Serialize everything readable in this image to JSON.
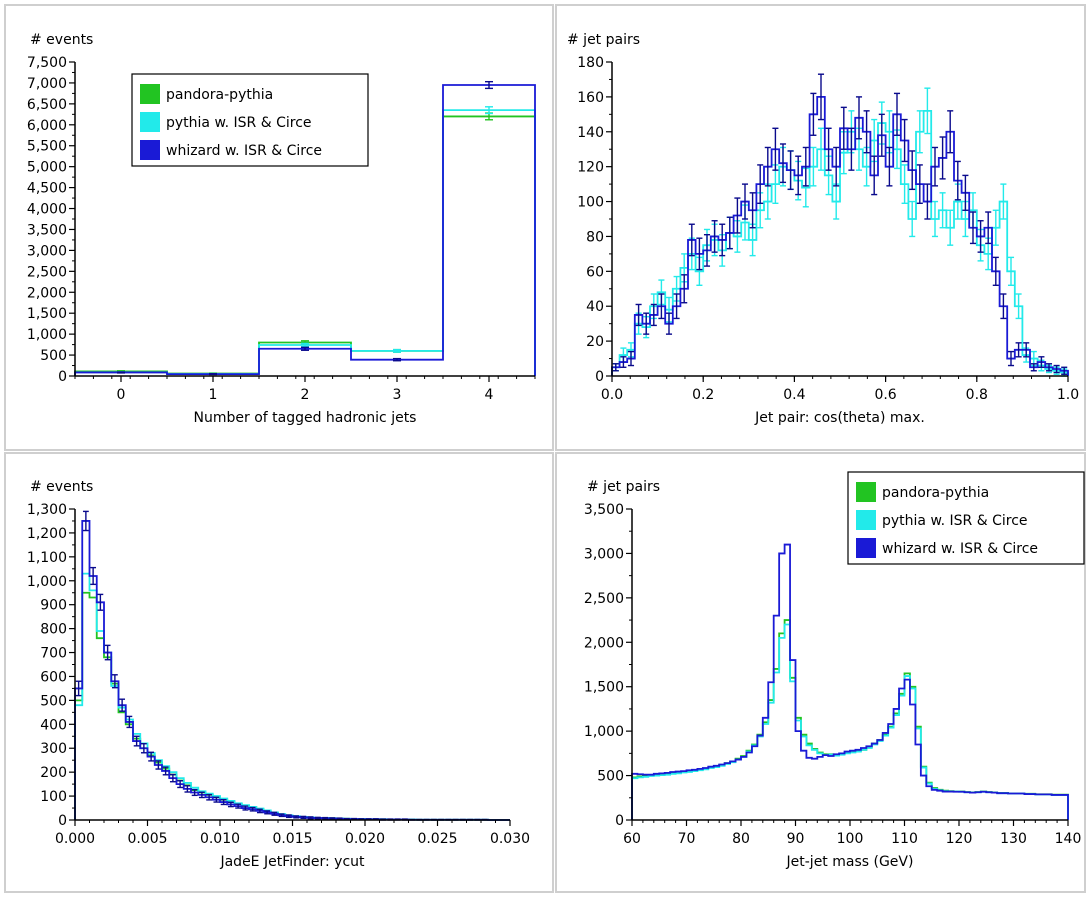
{
  "colors": {
    "pandora": "#22c422",
    "pythia": "#22eaea",
    "whizard": "#1a1ad6",
    "whizard_dark": "#0a0a8c",
    "panel_border": "#cfcfcf",
    "axis": "#000000"
  },
  "chart_data": [
    {
      "type": "histogram",
      "title": "",
      "ylabel": "# events",
      "xlabel": "Number of tagged hadronic jets",
      "xlim": [
        -0.5,
        4.5
      ],
      "ylim": [
        0,
        7500
      ],
      "xticks": [
        0,
        1,
        2,
        3,
        4
      ],
      "xtick_labels": [
        "0",
        "1",
        "2",
        "3",
        "4"
      ],
      "yticks": [
        0,
        500,
        1000,
        1500,
        2000,
        2500,
        3000,
        3500,
        4000,
        4500,
        5000,
        5500,
        6000,
        6500,
        7000,
        7500
      ],
      "ytick_labels": [
        "0",
        "500",
        "1,000",
        "1,500",
        "2,000",
        "2,500",
        "3,000",
        "3,500",
        "4,000",
        "4,500",
        "5,000",
        "5,500",
        "6,000",
        "6,500",
        "7,000",
        "7,500"
      ],
      "legend": {
        "placement": "top-left",
        "entries": [
          "pandora-pythia",
          "pythia w. ISR & Circe",
          "whizard w. ISR & Circe"
        ]
      },
      "bin_edges": [
        -0.5,
        0.5,
        1.5,
        2.5,
        3.5,
        4.5
      ],
      "series": [
        {
          "key": "pandora",
          "values": [
            110,
            60,
            800,
            600,
            6200
          ],
          "errors": [
            15,
            10,
            40,
            30,
            80
          ]
        },
        {
          "key": "pythia",
          "values": [
            90,
            50,
            740,
            600,
            6350
          ],
          "errors": [
            12,
            9,
            38,
            30,
            80
          ]
        },
        {
          "key": "whizard",
          "values": [
            85,
            45,
            650,
            390,
            6950
          ],
          "errors": [
            12,
            9,
            35,
            25,
            80
          ]
        }
      ]
    },
    {
      "type": "histogram",
      "title": "",
      "ylabel": "# jet pairs",
      "xlabel": "Jet pair: cos(theta) max.",
      "xlim": [
        0,
        1
      ],
      "ylim": [
        0,
        180
      ],
      "xticks": [
        0,
        0.2,
        0.4,
        0.6,
        0.8,
        1.0
      ],
      "xtick_labels": [
        "0.0",
        "0.2",
        "0.4",
        "0.6",
        "0.8",
        "1.0"
      ],
      "yticks": [
        0,
        20,
        40,
        60,
        80,
        100,
        120,
        140,
        160,
        180
      ],
      "ytick_labels": [
        "0",
        "20",
        "40",
        "60",
        "80",
        "100",
        "120",
        "140",
        "160",
        "180"
      ],
      "legend": null,
      "bin_range": [
        0,
        1
      ],
      "series": [
        {
          "key": "pythia",
          "values": [
            5,
            12,
            15,
            30,
            28,
            40,
            48,
            38,
            50,
            62,
            70,
            60,
            75,
            78,
            72,
            82,
            80,
            88,
            78,
            95,
            100,
            110,
            120,
            118,
            112,
            108,
            120,
            130,
            115,
            100,
            128,
            140,
            130,
            120,
            135,
            145,
            140,
            130,
            110,
            90,
            140,
            152,
            90,
            95,
            85,
            100,
            90,
            95,
            75,
            70,
            85,
            100,
            60,
            40,
            12,
            10,
            6,
            4,
            3,
            2
          ],
          "errors": [
            2,
            4,
            4,
            6,
            6,
            7,
            7,
            7,
            7,
            8,
            9,
            8,
            9,
            9,
            9,
            9,
            9,
            10,
            9,
            10,
            10,
            11,
            11,
            11,
            11,
            11,
            11,
            12,
            11,
            10,
            12,
            12,
            12,
            11,
            12,
            12,
            12,
            11,
            11,
            10,
            12,
            13,
            10,
            10,
            10,
            10,
            10,
            10,
            9,
            9,
            10,
            10,
            8,
            7,
            4,
            4,
            3,
            2,
            2,
            2
          ]
        },
        {
          "key": "whizard",
          "values": [
            5,
            8,
            10,
            35,
            30,
            35,
            40,
            30,
            40,
            50,
            78,
            70,
            72,
            80,
            78,
            82,
            92,
            100,
            95,
            110,
            120,
            130,
            122,
            118,
            115,
            120,
            150,
            160,
            130,
            120,
            142,
            130,
            148,
            140,
            115,
            138,
            120,
            150,
            135,
            118,
            110,
            100,
            120,
            125,
            140,
            112,
            105,
            85,
            80,
            85,
            60,
            40,
            10,
            15,
            15,
            5,
            8,
            5,
            4,
            3
          ],
          "errors": [
            2,
            3,
            4,
            6,
            6,
            6,
            7,
            6,
            7,
            8,
            9,
            9,
            9,
            9,
            9,
            9,
            10,
            10,
            10,
            11,
            11,
            12,
            11,
            11,
            11,
            11,
            12,
            13,
            12,
            11,
            12,
            12,
            12,
            12,
            11,
            12,
            11,
            12,
            12,
            11,
            11,
            10,
            11,
            12,
            12,
            11,
            10,
            9,
            9,
            9,
            8,
            7,
            4,
            4,
            4,
            2,
            3,
            2,
            2,
            2
          ]
        }
      ]
    },
    {
      "type": "histogram",
      "title": "",
      "ylabel": "# events",
      "xlabel": "JadeE JetFinder: ycut",
      "xlim": [
        0,
        0.03
      ],
      "ylim": [
        0,
        1300
      ],
      "xticks": [
        0,
        0.005,
        0.01,
        0.015,
        0.02,
        0.025,
        0.03
      ],
      "xtick_labels": [
        "0.000",
        "0.005",
        "0.010",
        "0.015",
        "0.020",
        "0.025",
        "0.030"
      ],
      "yticks": [
        0,
        100,
        200,
        300,
        400,
        500,
        600,
        700,
        800,
        900,
        1000,
        1100,
        1200,
        1300
      ],
      "ytick_labels": [
        "0",
        "100",
        "200",
        "300",
        "400",
        "500",
        "600",
        "700",
        "800",
        "900",
        "1,000",
        "1,100",
        "1,200",
        "1,300"
      ],
      "legend": null,
      "bin_width": 0.0005,
      "series": [
        {
          "key": "pandora",
          "values": [
            500,
            950,
            930,
            760,
            680,
            570,
            450,
            400,
            340,
            300,
            270,
            240,
            215,
            190,
            165,
            145,
            125,
            115,
            105,
            95,
            85,
            75,
            68,
            60,
            55,
            45,
            35,
            28,
            22,
            18,
            15,
            12,
            10,
            9,
            8,
            7,
            6,
            5,
            4,
            4,
            3,
            3,
            3,
            2,
            2,
            2,
            2,
            1,
            1,
            1,
            1,
            1,
            1,
            1,
            1,
            1,
            1,
            0,
            0,
            0
          ]
        },
        {
          "key": "pythia",
          "values": [
            480,
            1030,
            960,
            790,
            700,
            560,
            470,
            420,
            360,
            320,
            280,
            250,
            225,
            200,
            175,
            155,
            135,
            120,
            110,
            100,
            90,
            80,
            70,
            62,
            55,
            48,
            40,
            32,
            25,
            20,
            16,
            13,
            11,
            9,
            8,
            7,
            6,
            5,
            4,
            4,
            3,
            3,
            3,
            2,
            2,
            2,
            2,
            1,
            1,
            1,
            1,
            1,
            1,
            1,
            1,
            1,
            1,
            0,
            0,
            0
          ]
        },
        {
          "key": "whizard",
          "values": [
            550,
            1250,
            1020,
            910,
            700,
            580,
            480,
            410,
            330,
            300,
            265,
            230,
            205,
            175,
            150,
            130,
            115,
            105,
            95,
            85,
            75,
            65,
            58,
            50,
            45,
            38,
            32,
            26,
            20,
            16,
            13,
            11,
            9,
            8,
            7,
            6,
            5,
            4,
            4,
            3,
            3,
            3,
            2,
            2,
            2,
            2,
            1,
            1,
            1,
            1,
            1,
            1,
            1,
            1,
            1,
            1,
            1,
            0,
            0,
            0
          ],
          "errors": [
            30,
            40,
            35,
            33,
            30,
            27,
            25,
            23,
            20,
            19,
            18,
            17,
            16,
            15,
            14,
            13,
            12,
            11,
            11,
            10,
            10,
            9,
            8,
            8,
            7,
            7,
            6,
            6,
            5,
            5,
            4,
            4,
            4,
            3,
            3,
            3,
            3,
            2,
            2,
            2,
            2,
            2,
            2,
            2,
            2,
            2,
            1,
            1,
            1,
            1,
            1,
            1,
            1,
            1,
            1,
            1,
            1,
            0,
            0,
            0
          ]
        }
      ]
    },
    {
      "type": "histogram",
      "title": "",
      "ylabel": "# jet pairs",
      "xlabel": "Jet-jet mass (GeV)",
      "xlim": [
        60,
        140
      ],
      "ylim": [
        0,
        3500
      ],
      "xticks": [
        60,
        70,
        80,
        90,
        100,
        110,
        120,
        130,
        140
      ],
      "xtick_labels": [
        "60",
        "70",
        "80",
        "90",
        "100",
        "110",
        "120",
        "130",
        "140"
      ],
      "yticks": [
        0,
        500,
        1000,
        1500,
        2000,
        2500,
        3000,
        3500
      ],
      "ytick_labels": [
        "0",
        "500",
        "1,000",
        "1,500",
        "2,000",
        "2,500",
        "3,000",
        "3,500"
      ],
      "legend": {
        "placement": "top-right",
        "entries": [
          "pandora-pythia",
          "pythia w. ISR & Circe",
          "whizard w. ISR & Circe"
        ]
      },
      "bin_range": [
        60,
        140
      ],
      "series": [
        {
          "key": "pandora",
          "values": [
            480,
            490,
            495,
            500,
            505,
            515,
            520,
            530,
            535,
            545,
            550,
            560,
            570,
            580,
            595,
            600,
            620,
            640,
            660,
            690,
            720,
            780,
            850,
            960,
            1100,
            1350,
            1700,
            2100,
            2250,
            1600,
            1150,
            960,
            860,
            800,
            760,
            740,
            740,
            730,
            740,
            760,
            770,
            780,
            790,
            820,
            860,
            900,
            960,
            1050,
            1200,
            1420,
            1650,
            1500,
            1050,
            600,
            420,
            360,
            340,
            330,
            325,
            320,
            320,
            315,
            310,
            315,
            320,
            315,
            310,
            305,
            305,
            300,
            300,
            300,
            295,
            295,
            290,
            290,
            290,
            285,
            285,
            285
          ]
        },
        {
          "key": "pythia",
          "values": [
            470,
            480,
            485,
            495,
            500,
            505,
            510,
            520,
            525,
            535,
            540,
            550,
            560,
            570,
            585,
            595,
            610,
            630,
            650,
            680,
            710,
            770,
            840,
            940,
            1080,
            1320,
            1660,
            2050,
            2200,
            1560,
            1120,
            940,
            840,
            790,
            750,
            730,
            735,
            725,
            735,
            750,
            760,
            770,
            790,
            810,
            850,
            890,
            950,
            1040,
            1180,
            1400,
            1620,
            1480,
            1030,
            590,
            410,
            350,
            335,
            325,
            320,
            320,
            318,
            312,
            308,
            312,
            318,
            312,
            308,
            302,
            302,
            298,
            298,
            298,
            292,
            292,
            288,
            288,
            288,
            282,
            282,
            282
          ]
        },
        {
          "key": "whizard",
          "values": [
            520,
            515,
            510,
            510,
            520,
            525,
            530,
            540,
            545,
            550,
            560,
            565,
            575,
            585,
            600,
            610,
            625,
            640,
            660,
            680,
            710,
            760,
            830,
            950,
            1150,
            1550,
            2300,
            3000,
            3100,
            1800,
            1000,
            780,
            700,
            690,
            710,
            730,
            720,
            740,
            750,
            770,
            780,
            790,
            810,
            830,
            860,
            900,
            980,
            1080,
            1250,
            1480,
            1580,
            1300,
            850,
            500,
            380,
            340,
            330,
            320,
            320,
            318,
            318,
            312,
            308,
            312,
            318,
            312,
            308,
            302,
            302,
            298,
            298,
            298,
            292,
            292,
            288,
            288,
            288,
            282,
            282,
            282
          ]
        }
      ]
    }
  ]
}
